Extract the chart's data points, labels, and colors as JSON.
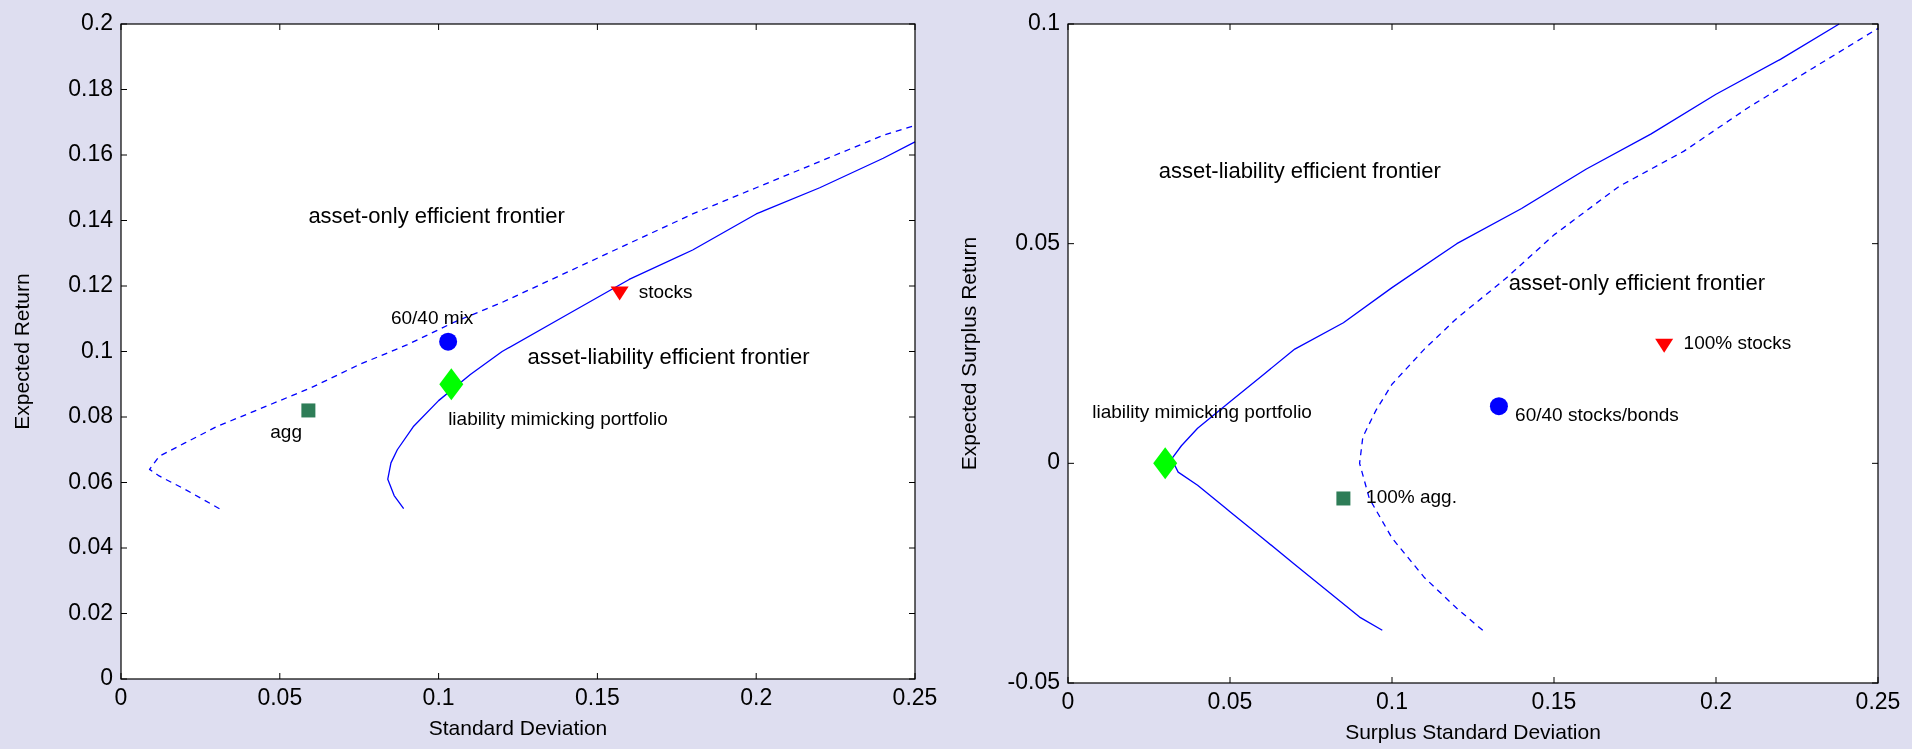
{
  "chart_data": [
    {
      "type": "line",
      "xlabel": "Standard Deviation",
      "ylabel": "Expected Return",
      "xlim": [
        0,
        0.25
      ],
      "ylim": [
        0,
        0.2
      ],
      "xticks": [
        {
          "value": 0,
          "label": "0"
        },
        0.05,
        0.1,
        0.15,
        0.2,
        0.25
      ],
      "yticks": [
        {
          "value": 0,
          "label": "0"
        },
        0.02,
        0.04,
        0.06,
        0.08,
        0.1,
        0.12,
        0.14,
        0.16,
        0.18,
        0.2
      ],
      "grid": false,
      "series": [
        {
          "line_style": "dashed",
          "color": "#0000ff",
          "marker": "none",
          "x": [
            0.031,
            0.02,
            0.012,
            0.009,
            0.012,
            0.02,
            0.03,
            0.045,
            0.06,
            0.075,
            0.09,
            0.105,
            0.12,
            0.14,
            0.16,
            0.18,
            0.2,
            0.22,
            0.24,
            0.25
          ],
          "values": [
            0.052,
            0.058,
            0.062,
            0.064,
            0.068,
            0.072,
            0.077,
            0.083,
            0.089,
            0.096,
            0.102,
            0.109,
            0.115,
            0.124,
            0.133,
            0.142,
            0.15,
            0.158,
            0.166,
            0.169
          ]
        },
        {
          "line_style": "solid",
          "color": "#0000ff",
          "marker": "none",
          "x": [
            0.089,
            0.086,
            0.084,
            0.085,
            0.087,
            0.092,
            0.1,
            0.11,
            0.12,
            0.14,
            0.16,
            0.18,
            0.2,
            0.22,
            0.24,
            0.25
          ],
          "values": [
            0.052,
            0.056,
            0.061,
            0.066,
            0.07,
            0.077,
            0.085,
            0.093,
            0.1,
            0.111,
            0.122,
            0.131,
            0.142,
            0.15,
            0.159,
            0.164
          ]
        },
        {
          "type": "scatter",
          "marker": "square",
          "color": "#2e7d57",
          "x": [
            0.059
          ],
          "values": [
            0.082
          ]
        },
        {
          "type": "scatter",
          "marker": "circle",
          "color": "#0000ff",
          "x": [
            0.103
          ],
          "values": [
            0.103
          ]
        },
        {
          "type": "scatter",
          "marker": "triangle",
          "color": "#ff0000",
          "x": [
            0.157
          ],
          "values": [
            0.118
          ]
        },
        {
          "type": "scatter",
          "marker": "diamond",
          "color": "#00ff00",
          "x": [
            0.104
          ],
          "values": [
            0.09
          ]
        }
      ],
      "annotations": [
        "asset-only efficient frontier",
        "60/40 mix",
        "stocks",
        "asset-liability efficient frontier",
        "liability mimicking portfolio",
        "agg"
      ]
    },
    {
      "type": "line",
      "xlabel": "Surplus Standard Deviation",
      "ylabel": "Expected Surplus Return",
      "xlim": [
        0,
        0.25
      ],
      "ylim": [
        -0.05,
        0.1
      ],
      "xticks": [
        {
          "value": 0,
          "label": "0"
        },
        0.05,
        0.1,
        0.15,
        0.2,
        0.25
      ],
      "yticks": [
        -0.05,
        {
          "value": 0,
          "label": "0"
        },
        0.05,
        0.1
      ],
      "grid": false,
      "series": [
        {
          "line_style": "solid",
          "color": "#0000ff",
          "marker": "none",
          "x": [
            0.097,
            0.09,
            0.08,
            0.07,
            0.06,
            0.05,
            0.04,
            0.034,
            0.032,
            0.035,
            0.04,
            0.05,
            0.06,
            0.07,
            0.085,
            0.1,
            0.12,
            0.14,
            0.16,
            0.18,
            0.2,
            0.22,
            0.238
          ],
          "values": [
            -0.038,
            -0.035,
            -0.029,
            -0.023,
            -0.017,
            -0.011,
            -0.005,
            -0.002,
            0.001,
            0.004,
            0.008,
            0.014,
            0.02,
            0.026,
            0.032,
            0.04,
            0.05,
            0.058,
            0.067,
            0.075,
            0.084,
            0.092,
            0.1
          ]
        },
        {
          "line_style": "dashed",
          "color": "#0000ff",
          "marker": "none",
          "x": [
            0.128,
            0.12,
            0.11,
            0.1,
            0.093,
            0.09,
            0.091,
            0.095,
            0.1,
            0.11,
            0.12,
            0.135,
            0.15,
            0.17,
            0.19,
            0.21,
            0.23,
            0.25
          ],
          "values": [
            -0.038,
            -0.033,
            -0.026,
            -0.017,
            -0.008,
            0.0,
            0.006,
            0.012,
            0.018,
            0.026,
            0.033,
            0.042,
            0.052,
            0.063,
            0.071,
            0.081,
            0.09,
            0.099
          ]
        },
        {
          "type": "scatter",
          "marker": "diamond",
          "color": "#00ff00",
          "x": [
            0.03
          ],
          "values": [
            0.0
          ]
        },
        {
          "type": "scatter",
          "marker": "square",
          "color": "#2e7d57",
          "x": [
            0.085
          ],
          "values": [
            -0.008
          ]
        },
        {
          "type": "scatter",
          "marker": "circle",
          "color": "#0000ff",
          "x": [
            0.133
          ],
          "values": [
            0.013
          ]
        },
        {
          "type": "scatter",
          "marker": "triangle",
          "color": "#ff0000",
          "x": [
            0.184
          ],
          "values": [
            0.027
          ]
        }
      ],
      "annotations": [
        "asset-liability efficient frontier",
        "asset-only efficient frontier",
        "100% stocks",
        "60/40 stocks/bonds",
        "liability mimicking portfolio",
        "100% agg."
      ]
    }
  ]
}
